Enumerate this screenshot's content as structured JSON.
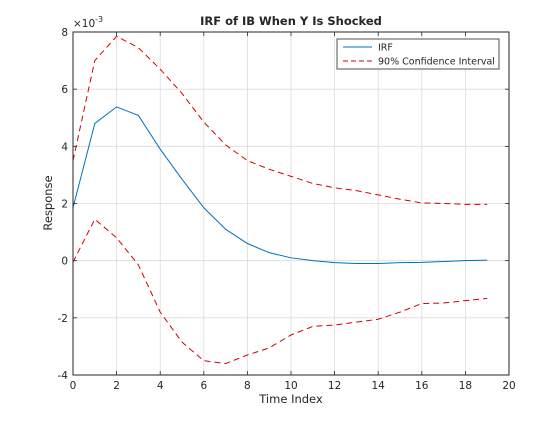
{
  "chart_data": {
    "type": "line",
    "title": "IRF of IB When Y Is Shocked",
    "xlabel": "Time Index",
    "ylabel": "Response",
    "y_multiplier_label": "×10",
    "y_multiplier_exponent": "-3",
    "xlim": [
      0,
      20
    ],
    "ylim": [
      -4,
      8
    ],
    "x_ticks": [
      0,
      2,
      4,
      6,
      8,
      10,
      12,
      14,
      16,
      18,
      20
    ],
    "y_ticks": [
      -4,
      -2,
      0,
      2,
      4,
      6,
      8
    ],
    "grid": true,
    "legend_position": "top-right",
    "x": [
      0,
      1,
      2,
      3,
      4,
      5,
      6,
      7,
      8,
      9,
      10,
      11,
      12,
      13,
      14,
      15,
      16,
      17,
      18,
      19
    ],
    "series": [
      {
        "name": "IRF",
        "color": "#0072BD",
        "style": "solid",
        "values": [
          1.85,
          4.8,
          5.38,
          5.08,
          3.9,
          2.85,
          1.85,
          1.1,
          0.6,
          0.28,
          0.1,
          0.0,
          -0.07,
          -0.1,
          -0.1,
          -0.07,
          -0.06,
          -0.03,
          0.0,
          0.02
        ]
      },
      {
        "name": "90% Confidence Interval",
        "color": "#D40000",
        "style": "dashed",
        "values": [
          3.5,
          7.0,
          7.85,
          7.45,
          6.7,
          5.85,
          4.85,
          4.05,
          3.5,
          3.2,
          2.95,
          2.7,
          2.55,
          2.45,
          2.3,
          2.15,
          2.02,
          2.0,
          1.97,
          1.97
        ]
      },
      {
        "name": "",
        "color": "#D40000",
        "style": "dashed",
        "values": [
          -0.05,
          1.45,
          0.8,
          -0.15,
          -1.8,
          -2.85,
          -3.5,
          -3.6,
          -3.3,
          -3.05,
          -2.6,
          -2.3,
          -2.25,
          -2.15,
          -2.05,
          -1.8,
          -1.5,
          -1.48,
          -1.4,
          -1.32
        ]
      }
    ]
  }
}
